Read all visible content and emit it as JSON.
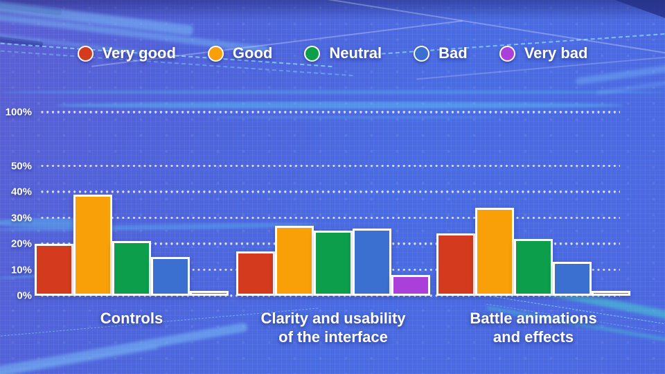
{
  "chart_data": {
    "type": "bar",
    "title": "",
    "categories": [
      "Controls",
      "Clarity and usability of the interface",
      "Battle animations and effects"
    ],
    "categories_display": [
      [
        "Controls"
      ],
      [
        "Clarity and usability",
        "of the interface"
      ],
      [
        "Battle animations",
        "and effects"
      ]
    ],
    "series": [
      {
        "name": "Very good",
        "color": "#d43a1d",
        "values": [
          20,
          17,
          24
        ]
      },
      {
        "name": "Good",
        "color": "#f9a009",
        "values": [
          39,
          27,
          34
        ]
      },
      {
        "name": "Neutral",
        "color": "#0d9e4c",
        "values": [
          21,
          25,
          22
        ]
      },
      {
        "name": "Bad",
        "color": "#3b6fd0",
        "values": [
          15,
          26,
          13
        ]
      },
      {
        "name": "Very bad",
        "color": "#aa40d9",
        "values": [
          2,
          8,
          2
        ]
      }
    ],
    "xlabel": "",
    "ylabel": "",
    "ylim": [
      0,
      100
    ],
    "y_ticks": [
      100,
      50,
      40,
      30,
      20,
      10,
      0
    ],
    "y_tick_labels": [
      "100%",
      "50%",
      "40%",
      "30%",
      "20%",
      "10%",
      "0%"
    ],
    "axis_note": "y axis compressed between 50% and 100% (broken scale)",
    "grid": "horizontal dotted white lines",
    "legend_position": "top",
    "bar_border_color": "#ffffff"
  },
  "style_colors": {
    "background_top_left": "#5b5fd2",
    "background_bottom_right": "#4c68e0",
    "text": "#ffffff",
    "streak_light_blue": "#7dc3fa",
    "streak_teal": "#48d8ce",
    "dashed_line_cyan": "#96f0ff"
  }
}
